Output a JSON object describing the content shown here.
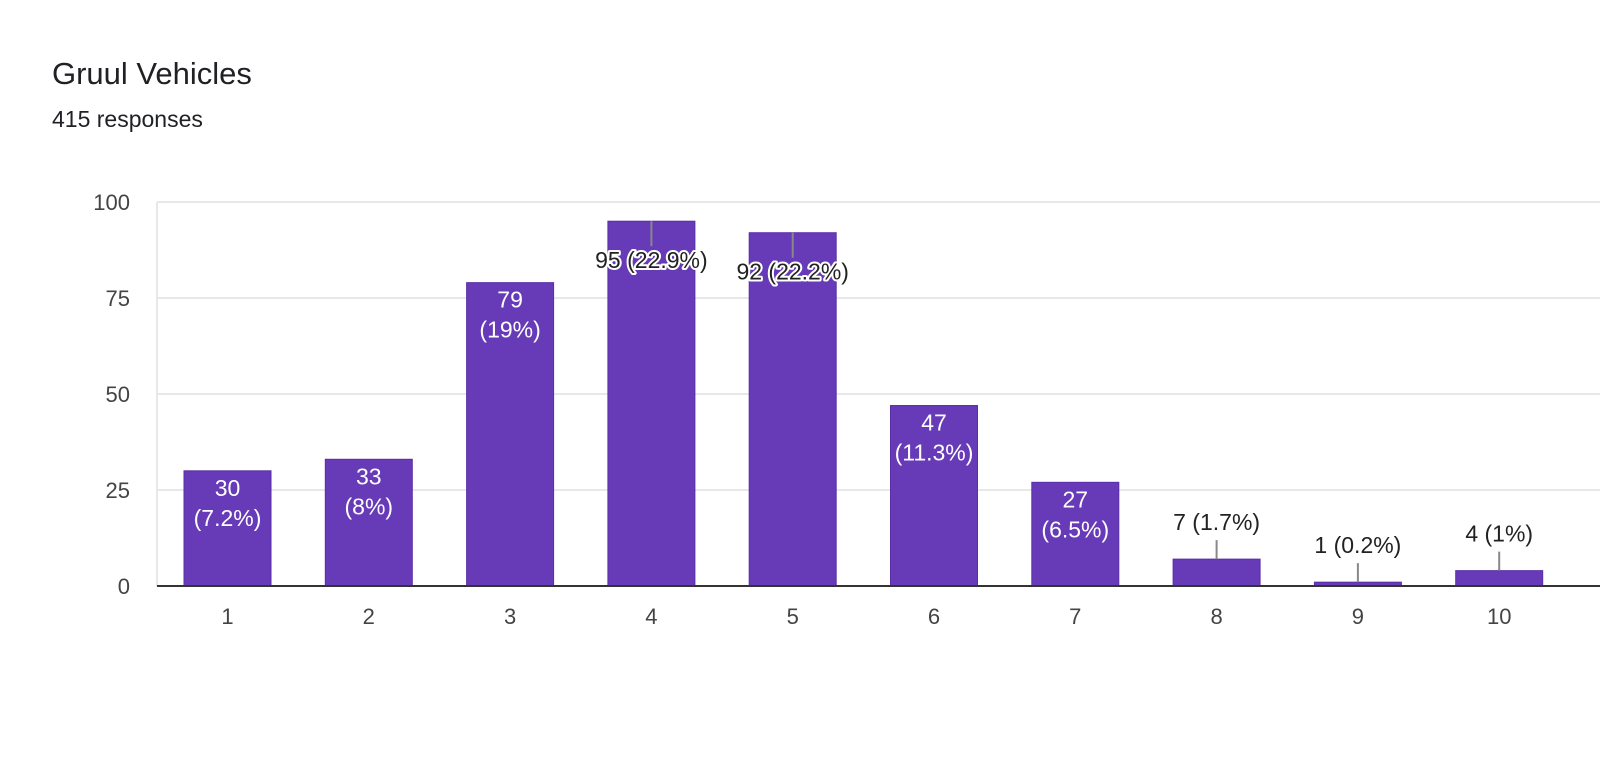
{
  "header": {
    "title": "Gruul Vehicles",
    "subtitle": "415 responses"
  },
  "colors": {
    "bar": "#673ab7",
    "bar_stroke": "#5a2fa8",
    "grid": "#e8e8e8",
    "axis": "#333333",
    "leader": "#888888"
  },
  "chart_data": {
    "type": "bar",
    "title": "Gruul Vehicles",
    "subtitle": "415 responses",
    "xlabel": "",
    "ylabel": "",
    "categories": [
      "1",
      "2",
      "3",
      "4",
      "5",
      "6",
      "7",
      "8",
      "9",
      "10"
    ],
    "values": [
      30,
      33,
      79,
      95,
      92,
      47,
      27,
      7,
      1,
      4
    ],
    "percent_labels": [
      "7.2%",
      "8%",
      "19%",
      "22.9%",
      "22.2%",
      "11.3%",
      "6.5%",
      "1.7%",
      "0.2%",
      "1%"
    ],
    "ylim": [
      0,
      100
    ],
    "yticks": [
      0,
      25,
      50,
      75,
      100
    ],
    "grid": true,
    "legend": "none"
  }
}
